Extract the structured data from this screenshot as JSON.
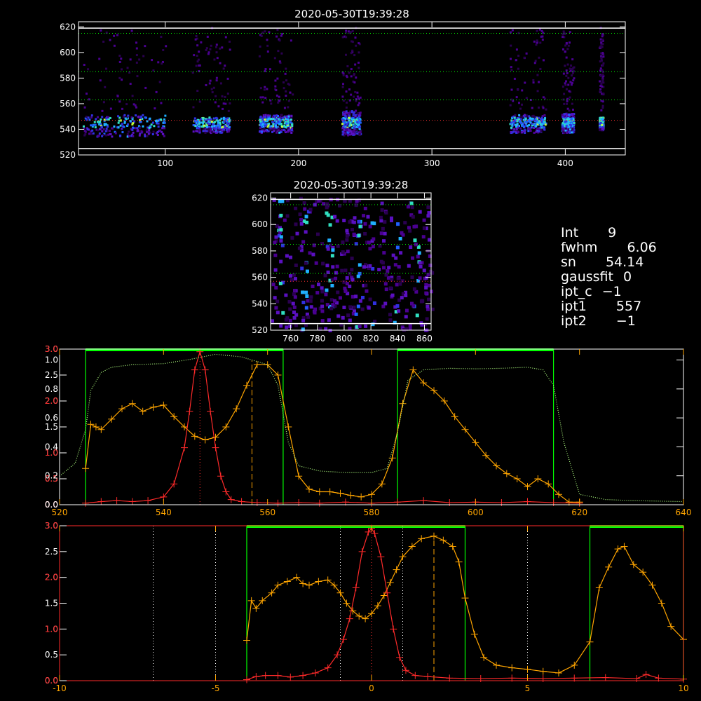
{
  "info": [
    {
      "k": "Int",
      "v": "9"
    },
    {
      "k": "fwhm",
      "v": "6.06"
    },
    {
      "k": "sn",
      "v": "54.14"
    },
    {
      "k": "gaussfit",
      "v": "0"
    },
    {
      "k": "ipt_c",
      "v": "−1"
    },
    {
      "k": "ipt1",
      "v": "557"
    },
    {
      "k": "ipt2",
      "v": "−1"
    }
  ],
  "colors": {
    "orange": "#ffa500",
    "red": "#ff2a2a",
    "green": "#00ff00",
    "pale_green": "#b0ff80"
  },
  "chart_data": [
    {
      "type": "heatmap",
      "title": "2020-05-30T19:39:28",
      "xlim": [
        35,
        445
      ],
      "ylim": [
        520,
        624
      ],
      "xticks": [
        100,
        200,
        300,
        400
      ],
      "yticks": [
        520,
        540,
        560,
        580,
        600,
        620
      ],
      "hlines_dotted": [
        {
          "y": 615,
          "color": "#00ff00"
        },
        {
          "y": 585,
          "color": "#00ff00"
        },
        {
          "y": 563,
          "color": "#00ff00"
        },
        {
          "y": 547,
          "color": "#ff3030"
        }
      ],
      "hlines_solid": [
        {
          "y": 525
        },
        {
          "y": 619
        }
      ],
      "blobs": [
        {
          "x0": 38,
          "x1": 100,
          "y0": 535,
          "y1": 552
        },
        {
          "x0": 120,
          "x1": 148,
          "y0": 538,
          "y1": 550
        },
        {
          "x0": 170,
          "x1": 195,
          "y0": 538,
          "y1": 552
        },
        {
          "x0": 232,
          "x1": 246,
          "y0": 536,
          "y1": 555
        },
        {
          "x0": 358,
          "x1": 385,
          "y0": 538,
          "y1": 552
        },
        {
          "x0": 397,
          "x1": 406,
          "y0": 538,
          "y1": 553
        },
        {
          "x0": 425,
          "x1": 428,
          "y0": 540,
          "y1": 550
        }
      ]
    },
    {
      "type": "heatmap",
      "title": "2020-05-30T19:39:28",
      "xlim": [
        745,
        865
      ],
      "ylim": [
        520,
        624
      ],
      "xticks": [
        760,
        780,
        800,
        820,
        840,
        860
      ],
      "yticks": [
        520,
        540,
        560,
        580,
        600,
        620
      ],
      "hlines_dotted": [
        {
          "y": 615,
          "color": "#00ff00"
        },
        {
          "y": 585,
          "color": "#00ff00"
        },
        {
          "y": 563,
          "color": "#00ff00"
        },
        {
          "y": 557,
          "color": "#ff3030"
        }
      ],
      "hlines_solid": [
        {
          "y": 525
        },
        {
          "y": 619
        }
      ],
      "columns": [
        752,
        770,
        788,
        810,
        822,
        838,
        852
      ]
    },
    {
      "type": "line",
      "xlim": [
        520,
        640
      ],
      "ylim_left": [
        0,
        3.0
      ],
      "xticks": [
        520,
        540,
        560,
        580,
        600,
        620,
        640
      ],
      "yticks_left": [
        0.0,
        0.5,
        1.0,
        1.5,
        2.0,
        2.5,
        3.0
      ],
      "yticks_left_colored": [
        0.0,
        0.5,
        1.0,
        2.0,
        3.0
      ],
      "yticks_right": [
        0.0,
        0.2,
        0.4,
        0.6,
        0.8,
        1.0
      ],
      "green_bands": [
        [
          525,
          563
        ],
        [
          585,
          615
        ]
      ],
      "vlines": [
        {
          "x": 547,
          "color": "#ff3030",
          "style": "dotted"
        },
        {
          "x": 557,
          "color": "#ffa500",
          "style": "dashed"
        }
      ],
      "series": [
        {
          "color": "#ffa500",
          "x": [
            525,
            526,
            527,
            528,
            530,
            532,
            534,
            536,
            538,
            540,
            542,
            544,
            546,
            548,
            550,
            552,
            554,
            556,
            558,
            560,
            562,
            564,
            566,
            568,
            570,
            572,
            574,
            576,
            578,
            580,
            582,
            584,
            586,
            588,
            590,
            592,
            594,
            596,
            598,
            600,
            602,
            604,
            606,
            608,
            610,
            612,
            614,
            616,
            618,
            620
          ],
          "y": [
            0.7,
            1.55,
            1.5,
            1.45,
            1.65,
            1.85,
            1.95,
            1.8,
            1.88,
            1.92,
            1.7,
            1.5,
            1.32,
            1.25,
            1.3,
            1.5,
            1.85,
            2.3,
            2.7,
            2.7,
            2.5,
            1.5,
            0.55,
            0.3,
            0.25,
            0.25,
            0.22,
            0.18,
            0.15,
            0.2,
            0.4,
            0.9,
            1.95,
            2.6,
            2.35,
            2.2,
            2.0,
            1.7,
            1.45,
            1.2,
            0.95,
            0.75,
            0.6,
            0.5,
            0.35,
            0.5,
            0.4,
            0.2,
            0.05,
            0.05
          ]
        },
        {
          "color": "#ff2a2a",
          "x": [
            525,
            528,
            531,
            534,
            537,
            540,
            542,
            544,
            545,
            546,
            547,
            548,
            549,
            550,
            551,
            552,
            553,
            555,
            558,
            562,
            566,
            570,
            575,
            580,
            585,
            590,
            595,
            600,
            605,
            610,
            615,
            620
          ],
          "y": [
            0.03,
            0.06,
            0.08,
            0.06,
            0.08,
            0.15,
            0.4,
            1.1,
            1.8,
            2.6,
            2.95,
            2.6,
            1.8,
            1.1,
            0.55,
            0.25,
            0.1,
            0.06,
            0.04,
            0.03,
            0.04,
            0.03,
            0.05,
            0.03,
            0.05,
            0.08,
            0.04,
            0.05,
            0.04,
            0.06,
            0.04,
            0.03
          ]
        },
        {
          "color": "#b0ff80",
          "style": "dotted",
          "x": [
            520,
            523,
            525,
            526,
            528,
            530,
            534,
            540,
            545,
            550,
            555,
            560,
            562,
            564,
            566,
            570,
            575,
            580,
            583,
            585,
            587,
            590,
            595,
            600,
            605,
            610,
            613,
            615,
            617,
            620,
            625,
            630,
            640
          ],
          "y": [
            0.55,
            0.8,
            1.45,
            2.2,
            2.55,
            2.65,
            2.7,
            2.72,
            2.8,
            2.9,
            2.85,
            2.7,
            2.3,
            1.2,
            0.75,
            0.65,
            0.62,
            0.62,
            0.7,
            1.4,
            2.4,
            2.6,
            2.63,
            2.62,
            2.63,
            2.65,
            2.6,
            2.3,
            1.2,
            0.2,
            0.1,
            0.08,
            0.06
          ]
        }
      ]
    },
    {
      "type": "line",
      "xlim": [
        -10,
        10
      ],
      "ylim": [
        0,
        3.0
      ],
      "xticks": [
        -10,
        -5,
        0,
        5,
        10
      ],
      "yticks": [
        0.0,
        0.5,
        1.0,
        1.5,
        2.0,
        2.5,
        3.0
      ],
      "yticks_colored": [
        0.0,
        1.0,
        2.0,
        3.0
      ],
      "green_bands": [
        [
          -4,
          3
        ],
        [
          7,
          10
        ]
      ],
      "vlines_dotted": [
        -7,
        -5,
        -1,
        1,
        5
      ],
      "vlines": [
        {
          "x": 0,
          "color": "#ff3030",
          "style": "dotted"
        },
        {
          "x": 2,
          "color": "#ffa500",
          "style": "dashed"
        }
      ],
      "series": [
        {
          "color": "#ffa500",
          "x": [
            -4,
            -3.85,
            -3.7,
            -3.5,
            -3.2,
            -3,
            -2.7,
            -2.4,
            -2.2,
            -2,
            -1.7,
            -1.4,
            -1.2,
            -1,
            -0.8,
            -0.6,
            -0.4,
            -0.2,
            0,
            0.2,
            0.4,
            0.6,
            0.8,
            1,
            1.3,
            1.6,
            2,
            2.3,
            2.6,
            2.8,
            3,
            3.3,
            3.6,
            4,
            4.5,
            5,
            5.5,
            6,
            6.5,
            7,
            7.3,
            7.6,
            7.9,
            8.1,
            8.4,
            8.7,
            9,
            9.3,
            9.6,
            10
          ],
          "y": [
            0.78,
            1.55,
            1.4,
            1.55,
            1.7,
            1.85,
            1.92,
            2.0,
            1.88,
            1.85,
            1.92,
            1.95,
            1.85,
            1.7,
            1.5,
            1.35,
            1.25,
            1.2,
            1.3,
            1.45,
            1.65,
            1.9,
            2.15,
            2.4,
            2.6,
            2.75,
            2.8,
            2.72,
            2.6,
            2.3,
            1.6,
            0.9,
            0.45,
            0.3,
            0.25,
            0.22,
            0.18,
            0.15,
            0.3,
            0.75,
            1.8,
            2.2,
            2.55,
            2.6,
            2.25,
            2.1,
            1.85,
            1.5,
            1.05,
            0.8
          ]
        },
        {
          "color": "#ff2a2a",
          "x": [
            -4,
            -3.7,
            -3.4,
            -3,
            -2.6,
            -2.2,
            -1.8,
            -1.4,
            -1.1,
            -0.9,
            -0.7,
            -0.5,
            -0.3,
            -0.1,
            0,
            0.1,
            0.3,
            0.5,
            0.7,
            0.9,
            1.1,
            1.4,
            1.8,
            2.5,
            3.5,
            4.5,
            5.5,
            6.5,
            7.5,
            8.5,
            8.8,
            9.2,
            10
          ],
          "y": [
            0.02,
            0.08,
            0.1,
            0.1,
            0.07,
            0.1,
            0.15,
            0.25,
            0.5,
            0.8,
            1.2,
            1.8,
            2.5,
            2.88,
            2.95,
            2.85,
            2.4,
            1.7,
            1.0,
            0.45,
            0.2,
            0.1,
            0.08,
            0.05,
            0.04,
            0.05,
            0.04,
            0.05,
            0.06,
            0.04,
            0.12,
            0.05,
            0.03
          ]
        }
      ]
    }
  ]
}
